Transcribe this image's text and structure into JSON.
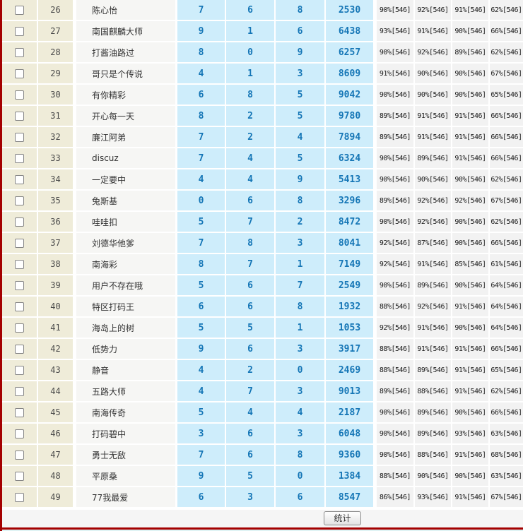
{
  "footer": {
    "stats_button_label": "统计"
  },
  "colors": {
    "frame_red": "#A40000",
    "beige_cell": "#EFECD9",
    "blue_cell": "#CEEDFB",
    "blue_text": "#1576B6",
    "stat_cell": "#F2F2F2",
    "name_cell": "#F6F6F4",
    "bottom_teal": "#DFF3F4"
  },
  "table": {
    "rows": [
      {
        "id": "26",
        "checked": false,
        "name": "陈心怡",
        "n1": "7",
        "n2": "6",
        "n3": "8",
        "total": "2530",
        "stats": [
          "90%[546]",
          "92%[546]",
          "91%[546]",
          "62%[546]"
        ]
      },
      {
        "id": "27",
        "checked": false,
        "name": "南国麒麟大师",
        "n1": "9",
        "n2": "1",
        "n3": "6",
        "total": "6438",
        "stats": [
          "93%[546]",
          "91%[546]",
          "90%[546]",
          "66%[546]"
        ]
      },
      {
        "id": "28",
        "checked": false,
        "name": "打酱油路过",
        "n1": "8",
        "n2": "0",
        "n3": "9",
        "total": "6257",
        "stats": [
          "90%[546]",
          "92%[546]",
          "89%[546]",
          "62%[546]"
        ]
      },
      {
        "id": "29",
        "checked": false,
        "name": "哥只是个传说",
        "n1": "4",
        "n2": "1",
        "n3": "3",
        "total": "8609",
        "stats": [
          "91%[546]",
          "90%[546]",
          "90%[546]",
          "67%[546]"
        ]
      },
      {
        "id": "30",
        "checked": false,
        "name": "有你精彩",
        "n1": "6",
        "n2": "8",
        "n3": "5",
        "total": "9042",
        "stats": [
          "90%[546]",
          "90%[546]",
          "90%[546]",
          "65%[546]"
        ]
      },
      {
        "id": "31",
        "checked": false,
        "name": "开心每一天",
        "n1": "8",
        "n2": "2",
        "n3": "5",
        "total": "9780",
        "stats": [
          "89%[546]",
          "91%[546]",
          "91%[546]",
          "66%[546]"
        ]
      },
      {
        "id": "32",
        "checked": false,
        "name": "廉江阿弟",
        "n1": "7",
        "n2": "2",
        "n3": "4",
        "total": "7894",
        "stats": [
          "89%[546]",
          "91%[546]",
          "91%[546]",
          "66%[546]"
        ]
      },
      {
        "id": "33",
        "checked": false,
        "name": "discuz",
        "n1": "7",
        "n2": "4",
        "n3": "5",
        "total": "6324",
        "stats": [
          "90%[546]",
          "89%[546]",
          "91%[546]",
          "66%[546]"
        ]
      },
      {
        "id": "34",
        "checked": false,
        "name": "一定要中",
        "n1": "4",
        "n2": "4",
        "n3": "9",
        "total": "5413",
        "stats": [
          "90%[546]",
          "90%[546]",
          "90%[546]",
          "62%[546]"
        ]
      },
      {
        "id": "35",
        "checked": false,
        "name": "兔斯基",
        "n1": "0",
        "n2": "6",
        "n3": "8",
        "total": "3296",
        "stats": [
          "89%[546]",
          "92%[546]",
          "92%[546]",
          "67%[546]"
        ]
      },
      {
        "id": "36",
        "checked": false,
        "name": "哇哇扣",
        "n1": "5",
        "n2": "7",
        "n3": "2",
        "total": "8472",
        "stats": [
          "90%[546]",
          "92%[546]",
          "90%[546]",
          "62%[546]"
        ]
      },
      {
        "id": "37",
        "checked": false,
        "name": "刘德华他爹",
        "n1": "7",
        "n2": "8",
        "n3": "3",
        "total": "8041",
        "stats": [
          "92%[546]",
          "87%[546]",
          "90%[546]",
          "66%[546]"
        ]
      },
      {
        "id": "38",
        "checked": false,
        "name": "南海彩",
        "n1": "8",
        "n2": "7",
        "n3": "1",
        "total": "7149",
        "stats": [
          "92%[546]",
          "91%[546]",
          "85%[546]",
          "61%[546]"
        ]
      },
      {
        "id": "39",
        "checked": false,
        "name": "用户不存在哦",
        "n1": "5",
        "n2": "6",
        "n3": "7",
        "total": "2549",
        "stats": [
          "90%[546]",
          "89%[546]",
          "90%[546]",
          "64%[546]"
        ]
      },
      {
        "id": "40",
        "checked": false,
        "name": "特区打码王",
        "n1": "6",
        "n2": "6",
        "n3": "8",
        "total": "1932",
        "stats": [
          "88%[546]",
          "92%[546]",
          "91%[546]",
          "64%[546]"
        ]
      },
      {
        "id": "41",
        "checked": false,
        "name": "海岛上的树",
        "n1": "5",
        "n2": "5",
        "n3": "1",
        "total": "1053",
        "stats": [
          "92%[546]",
          "91%[546]",
          "90%[546]",
          "64%[546]"
        ]
      },
      {
        "id": "42",
        "checked": false,
        "name": "低势力",
        "n1": "9",
        "n2": "6",
        "n3": "3",
        "total": "3917",
        "stats": [
          "88%[546]",
          "91%[546]",
          "91%[546]",
          "66%[546]"
        ]
      },
      {
        "id": "43",
        "checked": false,
        "name": "静音",
        "n1": "4",
        "n2": "2",
        "n3": "0",
        "total": "2469",
        "stats": [
          "88%[546]",
          "89%[546]",
          "91%[546]",
          "65%[546]"
        ]
      },
      {
        "id": "44",
        "checked": false,
        "name": "五路大师",
        "n1": "4",
        "n2": "7",
        "n3": "3",
        "total": "9013",
        "stats": [
          "89%[546]",
          "88%[546]",
          "91%[546]",
          "62%[546]"
        ]
      },
      {
        "id": "45",
        "checked": false,
        "name": "南海传奇",
        "n1": "5",
        "n2": "4",
        "n3": "4",
        "total": "2187",
        "stats": [
          "90%[546]",
          "89%[546]",
          "90%[546]",
          "66%[546]"
        ]
      },
      {
        "id": "46",
        "checked": false,
        "name": "打码碧中",
        "n1": "3",
        "n2": "6",
        "n3": "3",
        "total": "6048",
        "stats": [
          "90%[546]",
          "89%[546]",
          "93%[546]",
          "63%[546]"
        ]
      },
      {
        "id": "47",
        "checked": false,
        "name": "勇士无敌",
        "n1": "7",
        "n2": "6",
        "n3": "8",
        "total": "9360",
        "stats": [
          "90%[546]",
          "88%[546]",
          "91%[546]",
          "68%[546]"
        ]
      },
      {
        "id": "48",
        "checked": false,
        "name": "平原桑",
        "n1": "9",
        "n2": "5",
        "n3": "0",
        "total": "1384",
        "stats": [
          "88%[546]",
          "90%[546]",
          "90%[546]",
          "63%[546]"
        ]
      },
      {
        "id": "49",
        "checked": false,
        "name": "77我最爱",
        "n1": "6",
        "n2": "3",
        "n3": "6",
        "total": "8547",
        "stats": [
          "86%[546]",
          "93%[546]",
          "91%[546]",
          "67%[546]"
        ]
      }
    ]
  }
}
